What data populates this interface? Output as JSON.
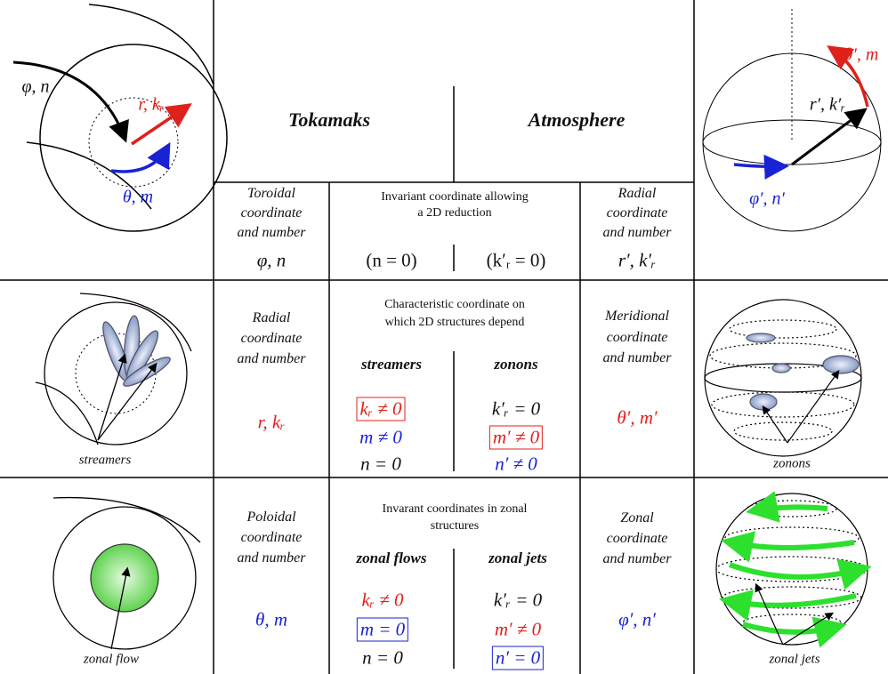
{
  "header": {
    "left": "Tokamaks",
    "right": "Atmosphere"
  },
  "figures": {
    "torus": {
      "labels": [
        "φ, n",
        "r, kᵣ",
        "θ, m"
      ]
    },
    "sphere": {
      "labels": [
        "θ′, m",
        "r′, k′ᵣ",
        "φ′, n′"
      ]
    },
    "streamers": {
      "caption": "streamers"
    },
    "zonons": {
      "caption": "zonons"
    },
    "zonal_flow": {
      "caption": "zonal flow"
    },
    "zonal_jets": {
      "caption": "zonal jets"
    }
  },
  "rows": [
    {
      "left_label": [
        "Toroidal",
        "coordinate",
        "and number"
      ],
      "left_symbol": "φ, n",
      "middle_header": [
        "Invariant coordinate allowing",
        "a 2D reduction"
      ],
      "middle_left": "(n = 0)",
      "middle_right": "(k′ᵣ = 0)",
      "right_label": [
        "Radial",
        "coordinate",
        "and number"
      ],
      "right_symbol": "r′, k′ᵣ"
    },
    {
      "left_label": [
        "Radial",
        "coordinate",
        "and number"
      ],
      "left_symbol": "r, kᵣ",
      "middle_header": [
        "Characteristic coordinate on",
        "which 2D structures depend"
      ],
      "sub_left": "streamers",
      "sub_right": "zonons",
      "conditions_left": [
        "kᵣ ≠ 0",
        "m ≠ 0",
        "n = 0"
      ],
      "conditions_right": [
        "k′ᵣ = 0",
        "m′ ≠ 0",
        "n′ ≠ 0"
      ],
      "right_label": [
        "Meridional",
        "coordinate",
        "and number"
      ],
      "right_symbol": "θ′, m′"
    },
    {
      "left_label": [
        "Poloidal",
        "coordinate",
        "and number"
      ],
      "left_symbol": "θ, m",
      "middle_header": [
        "Invarant coordinates in zonal",
        "structures"
      ],
      "sub_left": "zonal flows",
      "sub_right": "zonal jets",
      "conditions_left": [
        "kᵣ ≠ 0",
        "m = 0",
        "n = 0"
      ],
      "conditions_right": [
        "k′ᵣ = 0",
        "m′ ≠ 0",
        "n′ = 0"
      ],
      "right_label": [
        "Zonal",
        "coordinate",
        "and number"
      ],
      "right_symbol": "φ′, n′"
    }
  ]
}
